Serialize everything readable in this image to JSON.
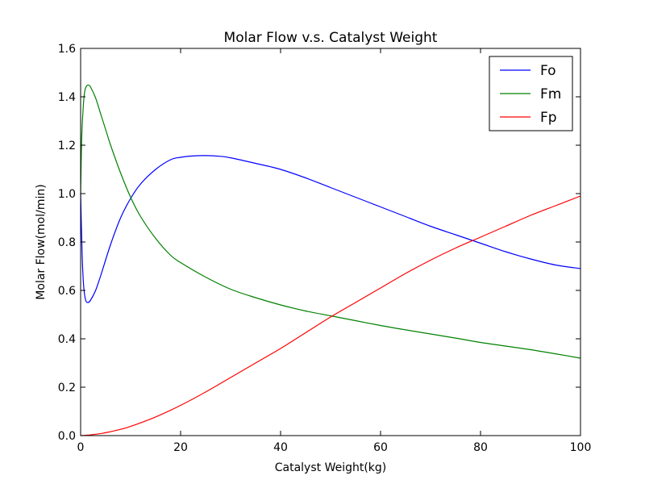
{
  "chart_data": {
    "type": "line",
    "title": "Molar Flow v.s. Catalyst Weight",
    "xlabel": "Catalyst Weight(kg)",
    "ylabel": "Molar Flow(mol/min)",
    "xlim": [
      0,
      100
    ],
    "ylim": [
      0,
      1.6
    ],
    "xticks": [
      "0",
      "20",
      "40",
      "60",
      "80",
      "100"
    ],
    "yticks": [
      "0.0",
      "0.2",
      "0.4",
      "0.6",
      "0.8",
      "1.0",
      "1.2",
      "1.4",
      "1.6"
    ],
    "grid": false,
    "legend_position": "top-right",
    "series": [
      {
        "name": "Fo",
        "color": "#0000ff",
        "x": [
          0,
          0.3,
          0.6,
          1.0,
          1.5,
          2.0,
          3,
          4,
          6,
          8,
          10,
          12,
          15,
          18,
          20,
          22,
          25,
          28,
          30,
          35,
          40,
          45,
          50,
          55,
          60,
          65,
          70,
          75,
          80,
          85,
          90,
          95,
          100
        ],
        "y": [
          1.0,
          0.75,
          0.62,
          0.56,
          0.55,
          0.56,
          0.6,
          0.66,
          0.79,
          0.9,
          0.98,
          1.04,
          1.1,
          1.14,
          1.15,
          1.155,
          1.157,
          1.154,
          1.148,
          1.125,
          1.1,
          1.065,
          1.025,
          0.985,
          0.945,
          0.905,
          0.865,
          0.83,
          0.795,
          0.76,
          0.73,
          0.705,
          0.69
        ]
      },
      {
        "name": "Fm",
        "color": "#008000",
        "x": [
          0,
          0.2,
          0.5,
          0.8,
          1.2,
          1.6,
          2.0,
          3,
          4,
          5,
          6,
          8,
          10,
          12,
          15,
          18,
          20,
          25,
          30,
          35,
          40,
          45,
          50,
          55,
          60,
          65,
          70,
          75,
          80,
          85,
          90,
          95,
          100
        ],
        "y": [
          1.0,
          1.22,
          1.35,
          1.42,
          1.445,
          1.448,
          1.44,
          1.395,
          1.33,
          1.265,
          1.2,
          1.085,
          0.985,
          0.905,
          0.815,
          0.745,
          0.715,
          0.655,
          0.605,
          0.57,
          0.54,
          0.515,
          0.495,
          0.475,
          0.455,
          0.437,
          0.42,
          0.403,
          0.385,
          0.37,
          0.355,
          0.338,
          0.32
        ]
      },
      {
        "name": "Fp",
        "color": "#ff0000",
        "x": [
          0,
          2,
          5,
          8,
          10,
          15,
          20,
          25,
          30,
          35,
          40,
          45,
          50,
          55,
          60,
          65,
          70,
          75,
          80,
          85,
          90,
          95,
          100
        ],
        "y": [
          0.0,
          0.003,
          0.012,
          0.026,
          0.038,
          0.077,
          0.125,
          0.18,
          0.24,
          0.3,
          0.36,
          0.425,
          0.49,
          0.55,
          0.61,
          0.67,
          0.725,
          0.775,
          0.82,
          0.865,
          0.91,
          0.95,
          0.99
        ]
      }
    ]
  }
}
